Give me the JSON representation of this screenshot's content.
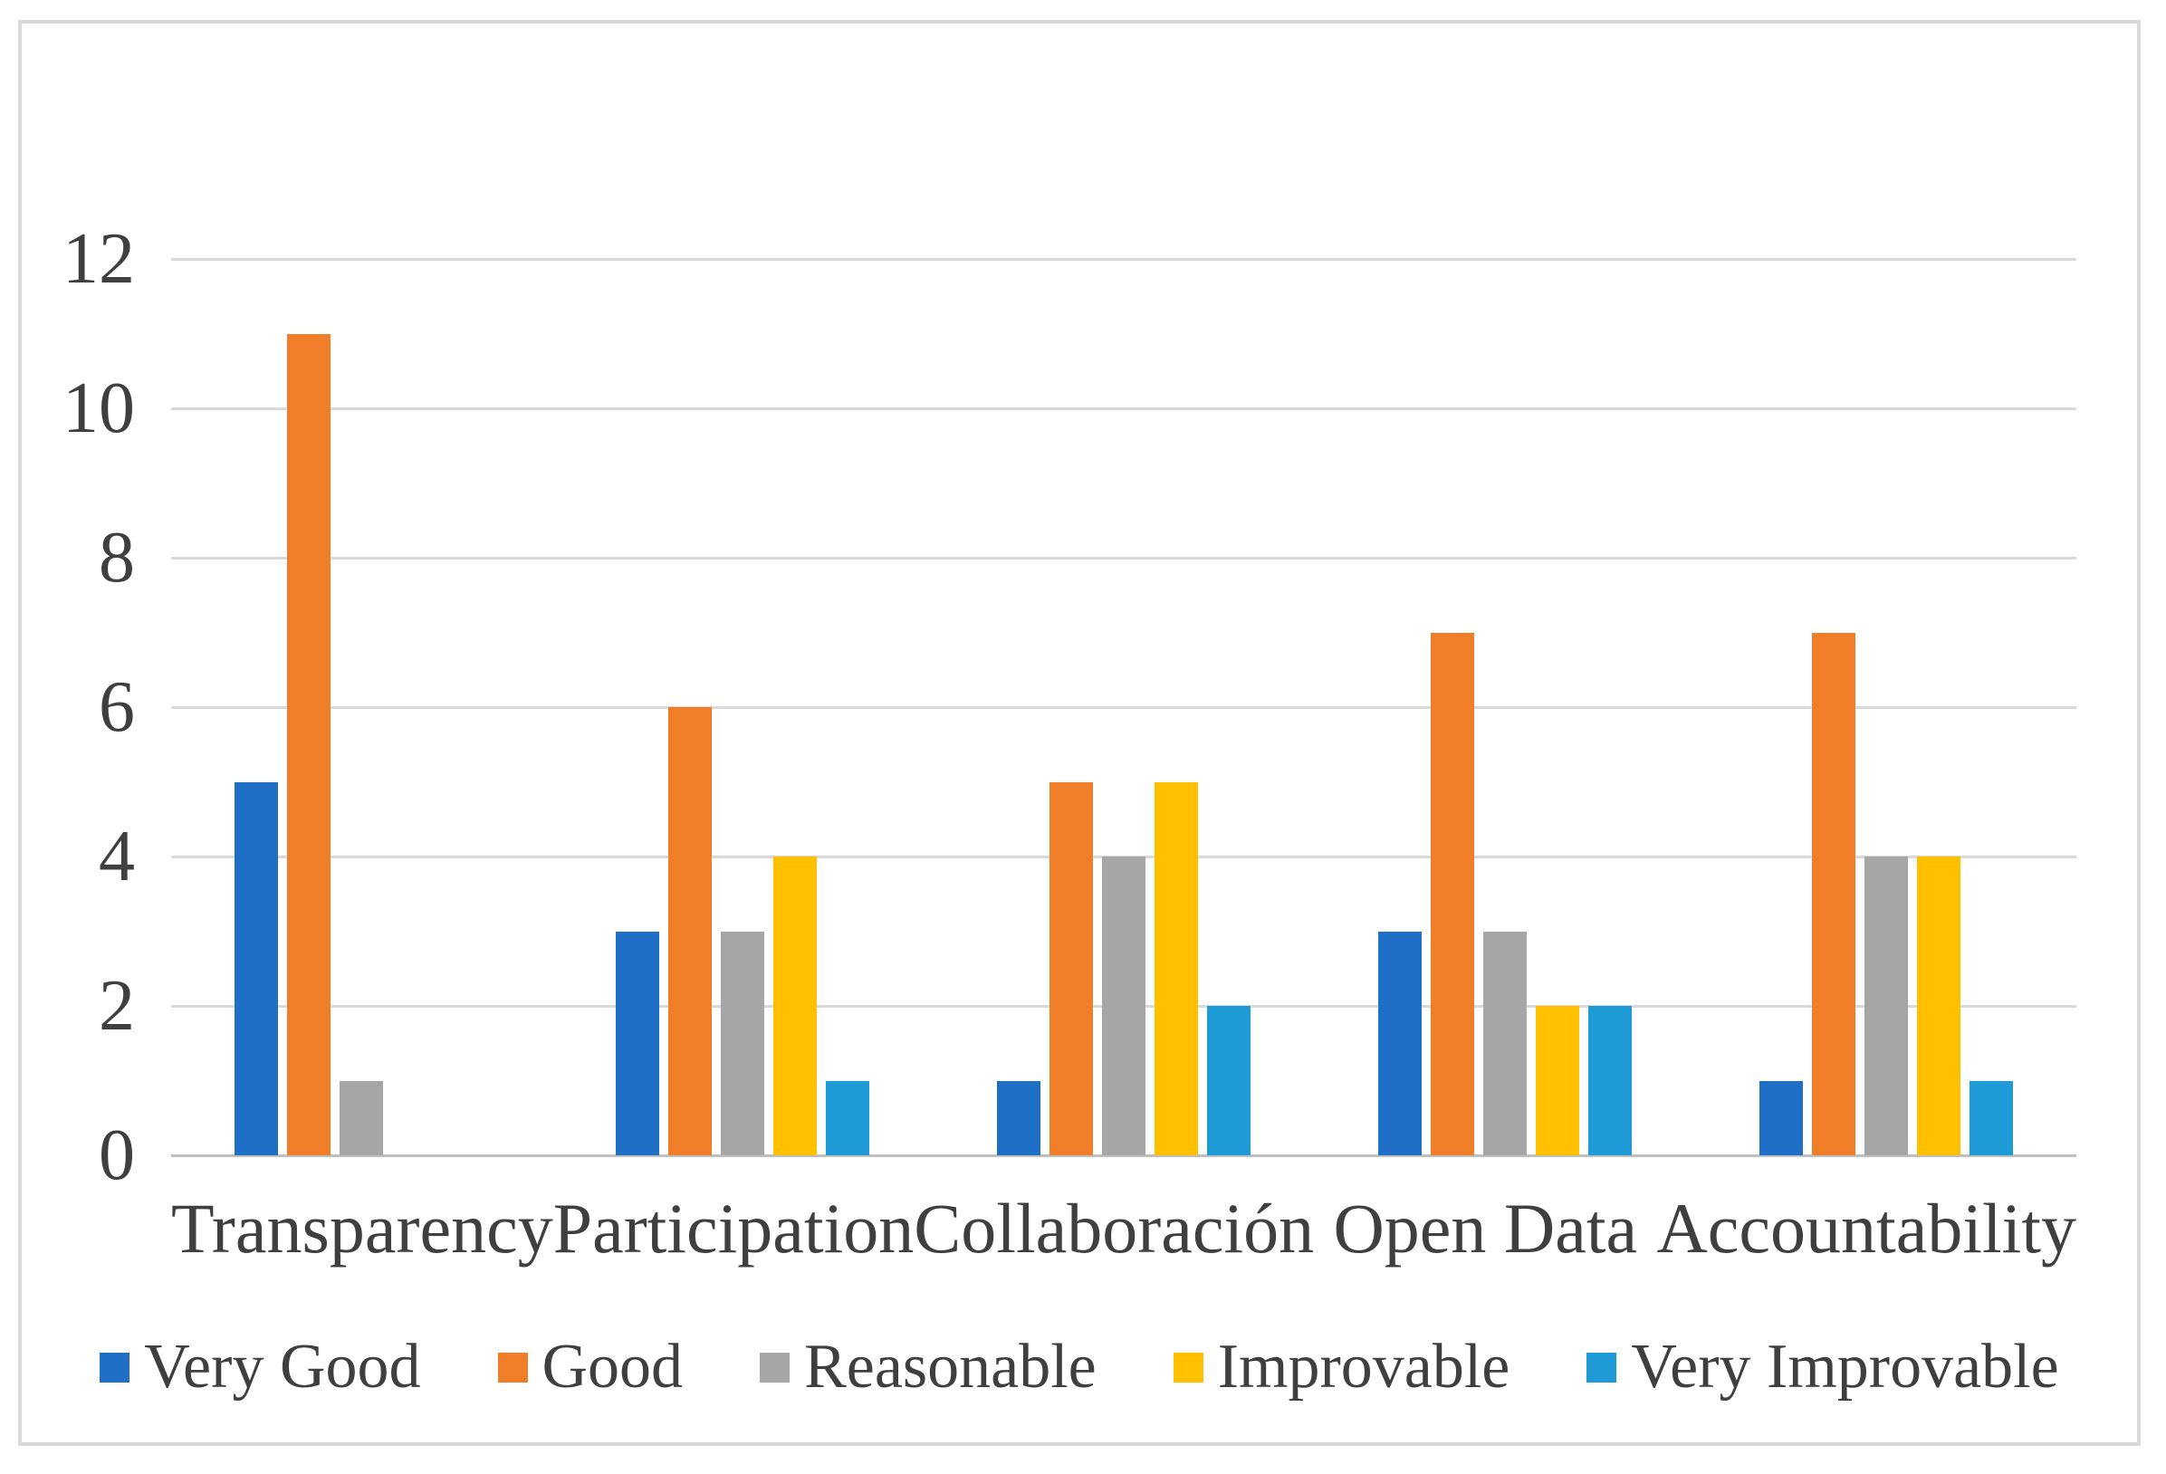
{
  "chart_data": {
    "type": "bar",
    "title": "",
    "xlabel": "",
    "ylabel": "",
    "categories": [
      "Transparency",
      "Participation",
      "Collaboración",
      "Open Data",
      "Accountability"
    ],
    "series": [
      {
        "name": "Very Good",
        "color": "#1F6FC6",
        "values": [
          5,
          3,
          1,
          3,
          1
        ]
      },
      {
        "name": "Good",
        "color": "#F07E28",
        "values": [
          11,
          6,
          5,
          7,
          7
        ]
      },
      {
        "name": "Reasonable",
        "color": "#A6A6A6",
        "values": [
          1,
          3,
          4,
          3,
          4
        ]
      },
      {
        "name": "Improvable",
        "color": "#FFC000",
        "values": [
          0,
          4,
          5,
          2,
          4
        ]
      },
      {
        "name": "Very Improvable",
        "color": "#1E9BD7",
        "values": [
          0,
          1,
          2,
          2,
          1
        ]
      }
    ],
    "ylim": [
      0,
      12
    ],
    "yticks": [
      0,
      2,
      4,
      6,
      8,
      10,
      12
    ],
    "grid": true,
    "gridline_color": "#d9d9d9",
    "axis_line_color": "#bfbfbf",
    "text_color": "#3f3f3f",
    "figure_border_color": "#d9d9d9",
    "legend_position": "bottom"
  }
}
